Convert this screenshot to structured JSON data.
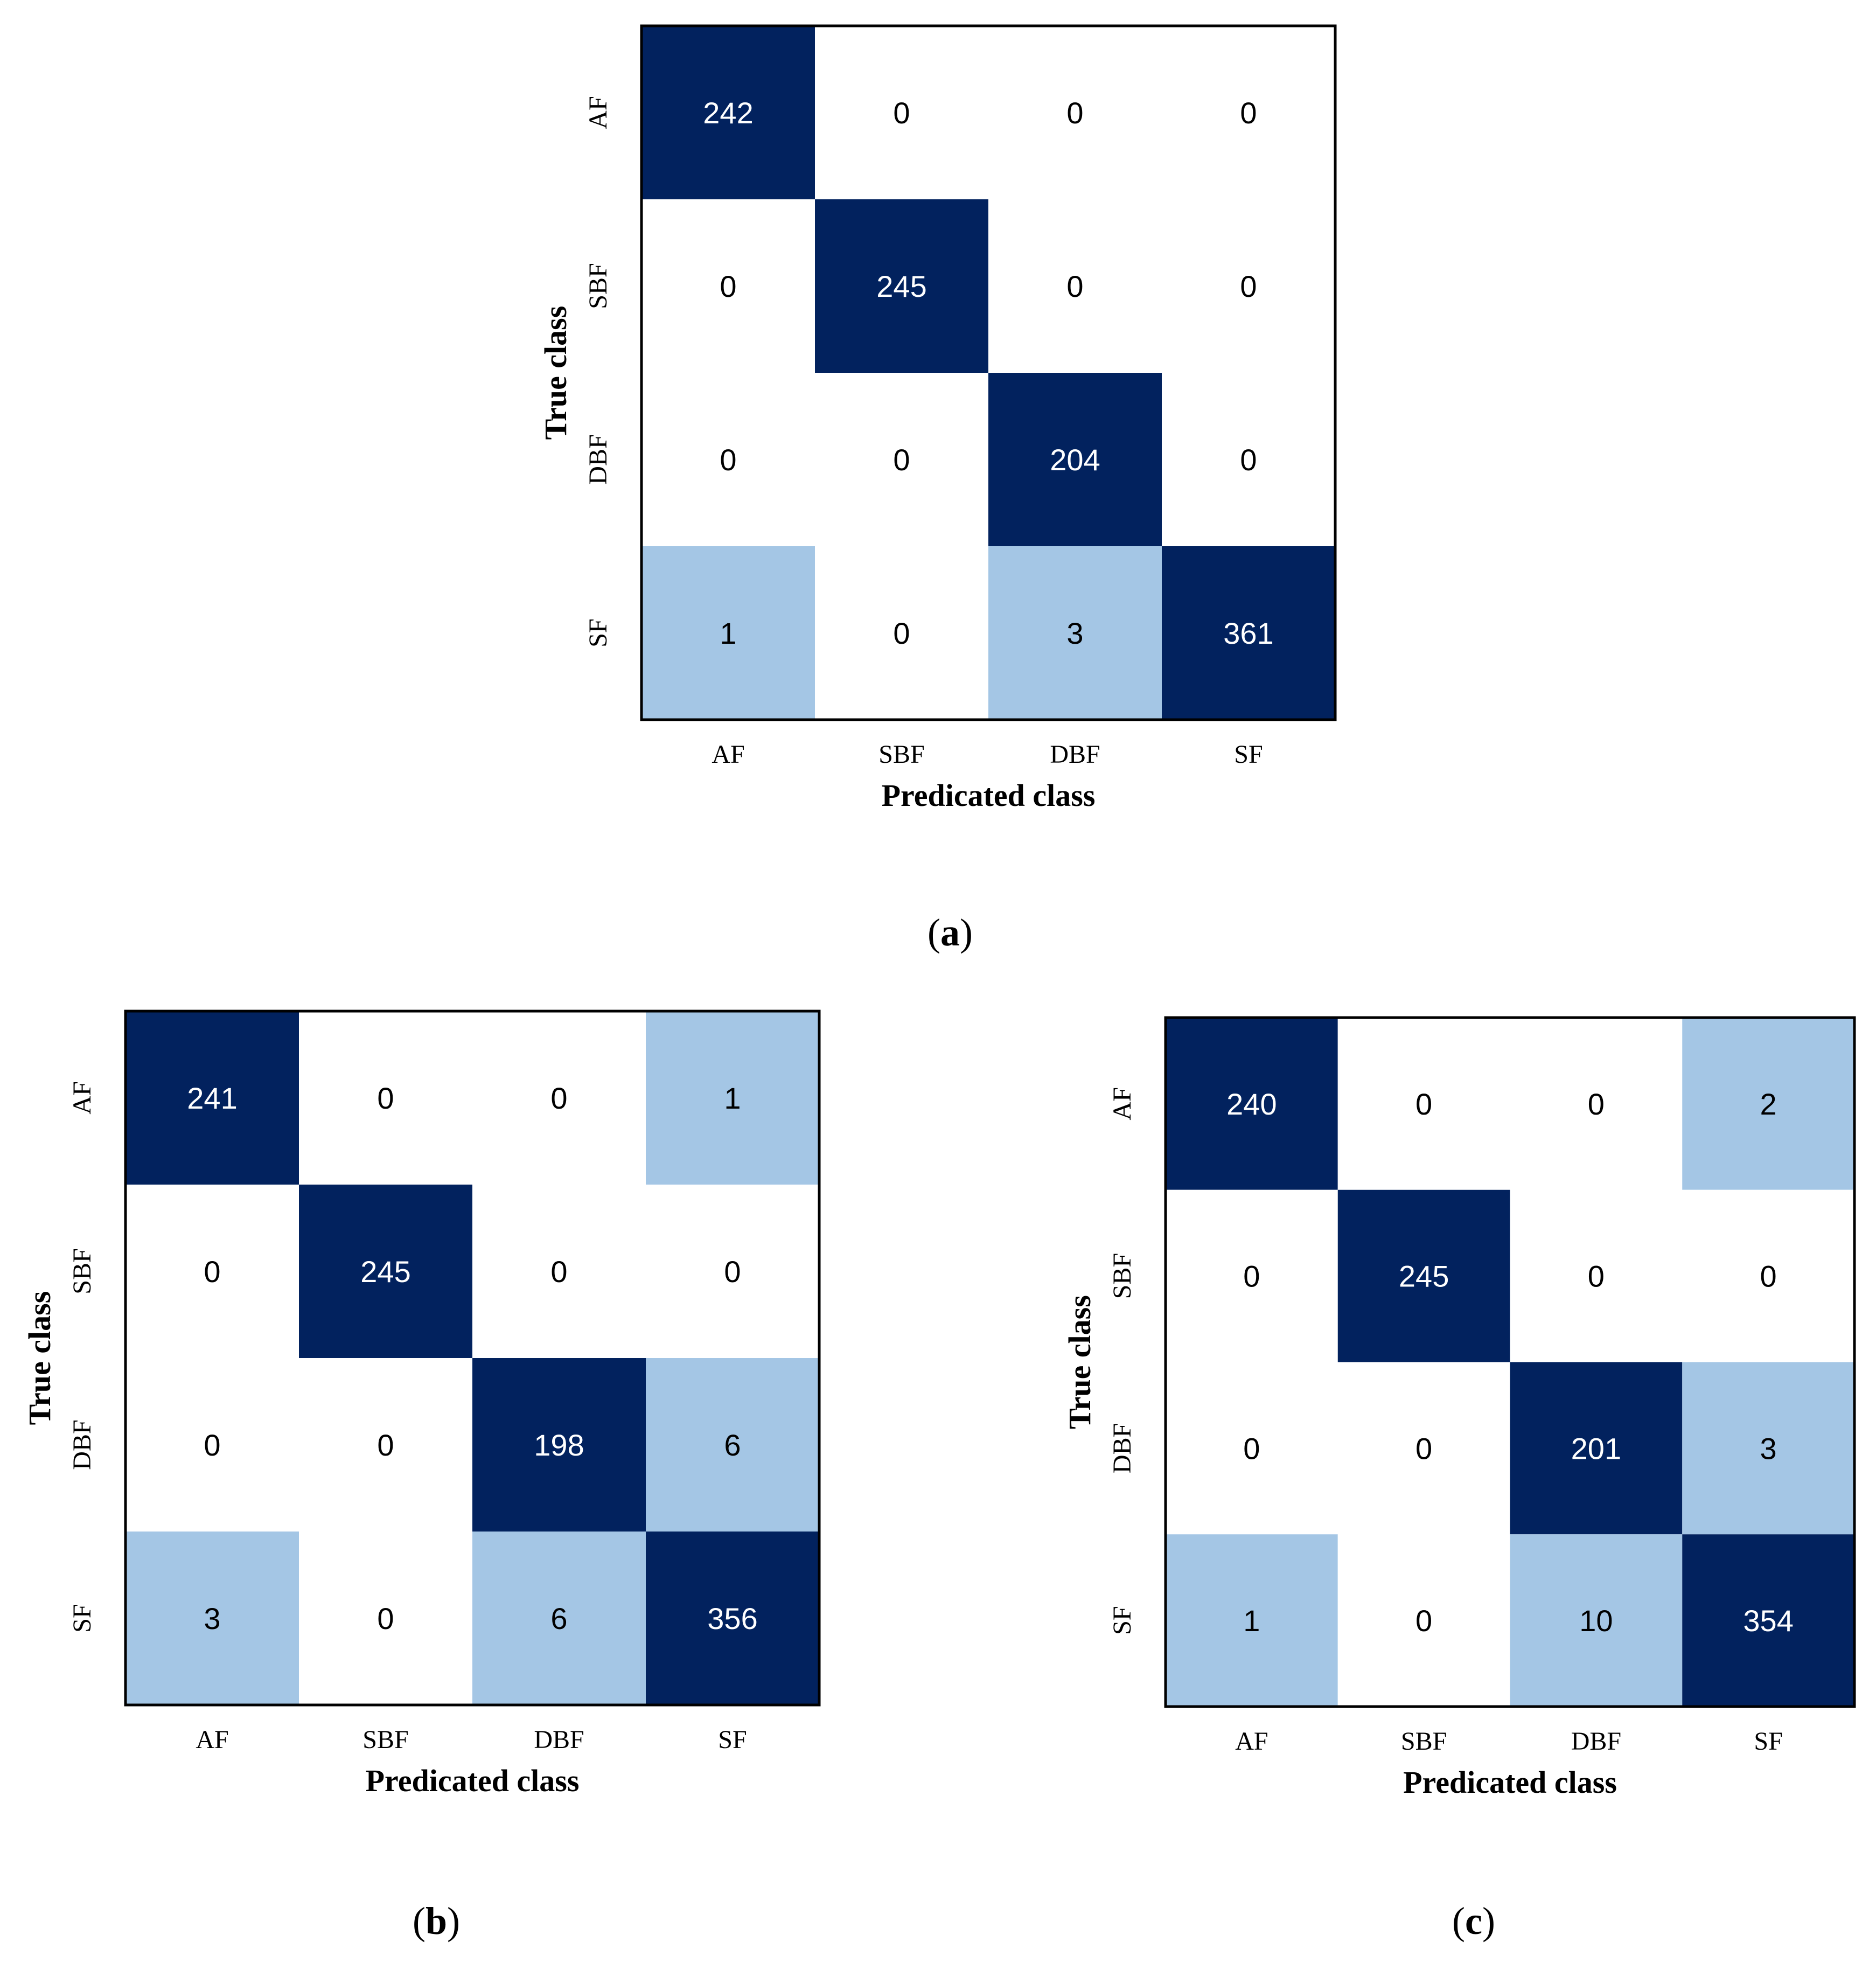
{
  "colors": {
    "high": "#02225e",
    "low": "#a4c6e5",
    "zero": "#ffffff",
    "frame": "#000000",
    "text_on_high": "#ffffff",
    "text_on_light": "#000000"
  },
  "chart_data": [
    {
      "type": "heatmap",
      "caption": {
        "open": "(",
        "letter": "a",
        "close": ")"
      },
      "xlabel": "Predicated class",
      "ylabel": "True class",
      "x_categories": [
        "AF",
        "SBF",
        "DBF",
        "SF"
      ],
      "y_categories": [
        "AF",
        "SBF",
        "DBF",
        "SF"
      ],
      "values": [
        [
          242,
          0,
          0,
          0
        ],
        [
          0,
          245,
          0,
          0
        ],
        [
          0,
          0,
          204,
          0
        ],
        [
          1,
          0,
          3,
          361
        ]
      ]
    },
    {
      "type": "heatmap",
      "caption": {
        "open": "(",
        "letter": "b",
        "close": ")"
      },
      "xlabel": "Predicated class",
      "ylabel": "True class",
      "x_categories": [
        "AF",
        "SBF",
        "DBF",
        "SF"
      ],
      "y_categories": [
        "AF",
        "SBF",
        "DBF",
        "SF"
      ],
      "values": [
        [
          241,
          0,
          0,
          1
        ],
        [
          0,
          245,
          0,
          0
        ],
        [
          0,
          0,
          198,
          6
        ],
        [
          3,
          0,
          6,
          356
        ]
      ]
    },
    {
      "type": "heatmap",
      "caption": {
        "open": "(",
        "letter": "c",
        "close": ")"
      },
      "xlabel": "Predicated class",
      "ylabel": "True class",
      "x_categories": [
        "AF",
        "SBF",
        "DBF",
        "SF"
      ],
      "y_categories": [
        "AF",
        "SBF",
        "DBF",
        "SF"
      ],
      "values": [
        [
          240,
          0,
          0,
          2
        ],
        [
          0,
          245,
          0,
          0
        ],
        [
          0,
          0,
          201,
          3
        ],
        [
          1,
          0,
          10,
          354
        ]
      ]
    }
  ]
}
